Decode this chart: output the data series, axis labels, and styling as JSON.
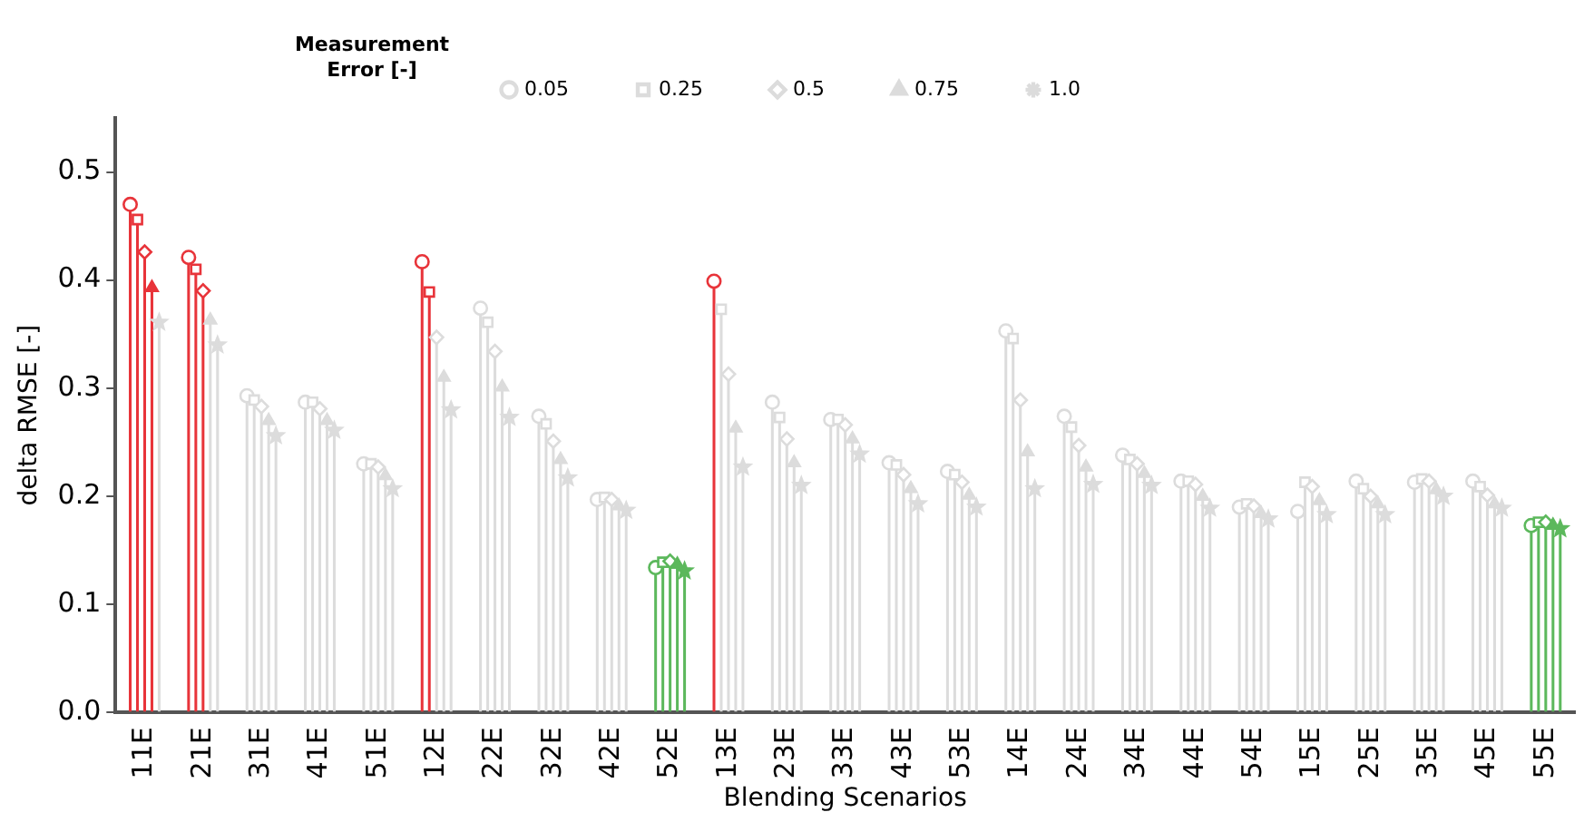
{
  "chart_data": {
    "type": "lollipop",
    "xlabel": "Blending Scenarios",
    "ylabel": "delta RMSE [-]",
    "legend_title": "Measurement\nError [-]",
    "legend": "top",
    "grid": false,
    "categories": [
      "11E",
      "21E",
      "31E",
      "41E",
      "51E",
      "12E",
      "22E",
      "32E",
      "42E",
      "52E",
      "13E",
      "23E",
      "33E",
      "43E",
      "53E",
      "14E",
      "24E",
      "34E",
      "44E",
      "54E",
      "15E",
      "25E",
      "35E",
      "45E",
      "55E"
    ],
    "ylim": [
      0,
      0.55
    ],
    "yticks": [
      {
        "value": 0,
        "label": "0.0"
      },
      0.1,
      0.2,
      0.3,
      0.4,
      0.5
    ],
    "series": [
      {
        "name": "0.05",
        "marker": "circle",
        "color": "#dcdcdc",
        "values": [
          0.47,
          0.421,
          0.293,
          0.287,
          0.23,
          0.417,
          0.374,
          0.274,
          0.197,
          0.134,
          0.399,
          0.287,
          0.271,
          0.231,
          0.223,
          0.353,
          0.274,
          0.238,
          0.214,
          0.19,
          0.186,
          0.214,
          0.213,
          0.214,
          0.173
        ],
        "colors": [
          "#e8343a",
          "#e8343a",
          "#dcdcdc",
          "#dcdcdc",
          "#dcdcdc",
          "#e8343a",
          "#dcdcdc",
          "#dcdcdc",
          "#dcdcdc",
          "#5cb85c",
          "#e8343a",
          "#dcdcdc",
          "#dcdcdc",
          "#dcdcdc",
          "#dcdcdc",
          "#dcdcdc",
          "#dcdcdc",
          "#dcdcdc",
          "#dcdcdc",
          "#dcdcdc",
          "#dcdcdc",
          "#dcdcdc",
          "#dcdcdc",
          "#dcdcdc",
          "#5cb85c"
        ]
      },
      {
        "name": "0.25",
        "marker": "square",
        "color": "#dcdcdc",
        "values": [
          0.456,
          0.41,
          0.289,
          0.287,
          0.23,
          0.389,
          0.361,
          0.267,
          0.199,
          0.139,
          0.373,
          0.273,
          0.271,
          0.229,
          0.22,
          0.346,
          0.264,
          0.234,
          0.214,
          0.193,
          0.213,
          0.207,
          0.216,
          0.209,
          0.176
        ],
        "colors": [
          "#e8343a",
          "#e8343a",
          "#dcdcdc",
          "#dcdcdc",
          "#dcdcdc",
          "#e8343a",
          "#dcdcdc",
          "#dcdcdc",
          "#dcdcdc",
          "#5cb85c",
          "#dcdcdc",
          "#dcdcdc",
          "#dcdcdc",
          "#dcdcdc",
          "#dcdcdc",
          "#dcdcdc",
          "#dcdcdc",
          "#dcdcdc",
          "#dcdcdc",
          "#dcdcdc",
          "#dcdcdc",
          "#dcdcdc",
          "#dcdcdc",
          "#dcdcdc",
          "#5cb85c"
        ]
      },
      {
        "name": "0.5",
        "marker": "diamond",
        "color": "#dcdcdc",
        "values": [
          0.426,
          0.39,
          0.283,
          0.281,
          0.227,
          0.347,
          0.334,
          0.251,
          0.197,
          0.14,
          0.313,
          0.253,
          0.266,
          0.22,
          0.213,
          0.289,
          0.247,
          0.23,
          0.211,
          0.191,
          0.209,
          0.2,
          0.214,
          0.201,
          0.176
        ],
        "colors": [
          "#e8343a",
          "#e8343a",
          "#dcdcdc",
          "#dcdcdc",
          "#dcdcdc",
          "#dcdcdc",
          "#dcdcdc",
          "#dcdcdc",
          "#dcdcdc",
          "#5cb85c",
          "#dcdcdc",
          "#dcdcdc",
          "#dcdcdc",
          "#dcdcdc",
          "#dcdcdc",
          "#dcdcdc",
          "#dcdcdc",
          "#dcdcdc",
          "#dcdcdc",
          "#dcdcdc",
          "#dcdcdc",
          "#dcdcdc",
          "#dcdcdc",
          "#dcdcdc",
          "#5cb85c"
        ]
      },
      {
        "name": "0.75",
        "marker": "triangle",
        "color": "#dcdcdc",
        "values": [
          0.393,
          0.363,
          0.27,
          0.27,
          0.219,
          0.31,
          0.301,
          0.234,
          0.191,
          0.137,
          0.263,
          0.231,
          0.253,
          0.207,
          0.201,
          0.241,
          0.227,
          0.221,
          0.2,
          0.184,
          0.196,
          0.193,
          0.206,
          0.193,
          0.173
        ],
        "colors": [
          "#e8343a",
          "#dcdcdc",
          "#dcdcdc",
          "#dcdcdc",
          "#dcdcdc",
          "#dcdcdc",
          "#dcdcdc",
          "#dcdcdc",
          "#dcdcdc",
          "#5cb85c",
          "#dcdcdc",
          "#dcdcdc",
          "#dcdcdc",
          "#dcdcdc",
          "#dcdcdc",
          "#dcdcdc",
          "#dcdcdc",
          "#dcdcdc",
          "#dcdcdc",
          "#dcdcdc",
          "#dcdcdc",
          "#dcdcdc",
          "#dcdcdc",
          "#dcdcdc",
          "#5cb85c"
        ]
      },
      {
        "name": "1.0",
        "marker": "star",
        "color": "#dcdcdc",
        "values": [
          0.361,
          0.34,
          0.256,
          0.261,
          0.207,
          0.28,
          0.273,
          0.217,
          0.187,
          0.131,
          0.227,
          0.21,
          0.239,
          0.193,
          0.19,
          0.207,
          0.211,
          0.21,
          0.189,
          0.179,
          0.183,
          0.183,
          0.2,
          0.189,
          0.17
        ],
        "colors": [
          "#dcdcdc",
          "#dcdcdc",
          "#dcdcdc",
          "#dcdcdc",
          "#dcdcdc",
          "#dcdcdc",
          "#dcdcdc",
          "#dcdcdc",
          "#dcdcdc",
          "#5cb85c",
          "#dcdcdc",
          "#dcdcdc",
          "#dcdcdc",
          "#dcdcdc",
          "#dcdcdc",
          "#dcdcdc",
          "#dcdcdc",
          "#dcdcdc",
          "#dcdcdc",
          "#dcdcdc",
          "#dcdcdc",
          "#dcdcdc",
          "#dcdcdc",
          "#dcdcdc",
          "#5cb85c"
        ]
      }
    ]
  }
}
